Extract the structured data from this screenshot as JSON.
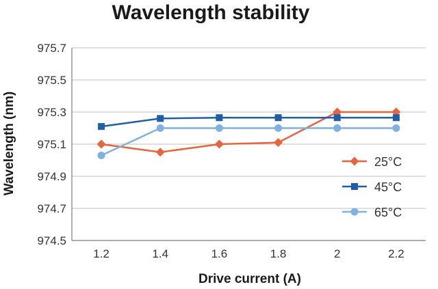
{
  "chart_data": {
    "type": "line",
    "title": "Wavelength stability",
    "xlabel": "Drive current (A)",
    "ylabel": "Wavelength (nm)",
    "x": [
      "1.2",
      "1.4",
      "1.6",
      "1.8",
      "2",
      "2.2"
    ],
    "x_values": [
      1.2,
      1.4,
      1.6,
      1.8,
      2.0,
      2.2
    ],
    "ylim": [
      974.5,
      975.7
    ],
    "yticks": [
      "974.5",
      "974.7",
      "974.9",
      "975.1",
      "975.3",
      "975.5",
      "975.7"
    ],
    "ytick_values": [
      974.5,
      974.7,
      974.9,
      975.1,
      975.3,
      975.5,
      975.7
    ],
    "grid": "horizontal",
    "legend_position": "right",
    "series": [
      {
        "name": "25°C",
        "color": "#e8643c",
        "marker": "diamond",
        "values": [
          975.1,
          975.05,
          975.1,
          975.11,
          975.3,
          975.3
        ]
      },
      {
        "name": "45°C",
        "color": "#1f5ea8",
        "marker": "square",
        "values": [
          975.21,
          975.26,
          975.265,
          975.265,
          975.265,
          975.265
        ]
      },
      {
        "name": "65°C",
        "color": "#7fb2e0",
        "marker": "circle",
        "values": [
          975.03,
          975.2,
          975.2,
          975.2,
          975.2,
          975.2
        ]
      }
    ]
  }
}
